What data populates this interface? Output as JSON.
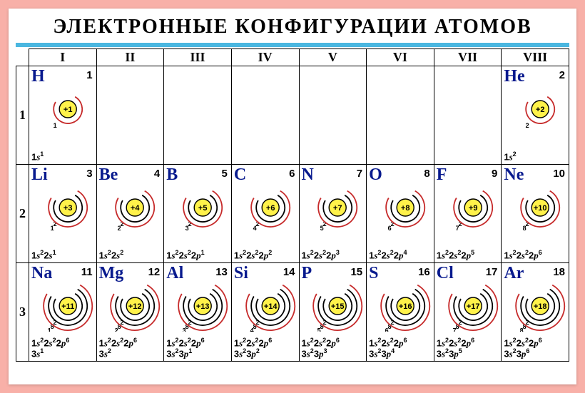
{
  "title": "ЭЛЕКТРОННЫЕ  КОНФИГУРАЦИИ  АТОМОВ",
  "accent_color": "#4bb7e0",
  "nucleus_fill": "#fff24a",
  "arc_color_red": "#c62a2a",
  "arc_color_black": "#000000",
  "group_headers": [
    "I",
    "II",
    "III",
    "IV",
    "V",
    "VI",
    "VII",
    "VIII"
  ],
  "period_labels": [
    "1",
    "2",
    "3"
  ],
  "elements": {
    "H": {
      "z": 1,
      "period": 1,
      "group": 1,
      "shells": [
        1
      ],
      "config": "1s^1"
    },
    "He": {
      "z": 2,
      "period": 1,
      "group": 8,
      "shells": [
        2
      ],
      "config": "1s^2"
    },
    "Li": {
      "z": 3,
      "period": 2,
      "group": 1,
      "shells": [
        2,
        1
      ],
      "config": "1s^2 2s^1"
    },
    "Be": {
      "z": 4,
      "period": 2,
      "group": 2,
      "shells": [
        2,
        2
      ],
      "config": "1s^2 2s^2"
    },
    "B": {
      "z": 5,
      "period": 2,
      "group": 3,
      "shells": [
        2,
        3
      ],
      "config": "1s^2 2s^2 2p^1"
    },
    "C": {
      "z": 6,
      "period": 2,
      "group": 4,
      "shells": [
        2,
        4
      ],
      "config": "1s^2 2s^2 2p^2"
    },
    "N": {
      "z": 7,
      "period": 2,
      "group": 5,
      "shells": [
        2,
        5
      ],
      "config": "1s^2 2s^2 2p^3"
    },
    "O": {
      "z": 8,
      "period": 2,
      "group": 6,
      "shells": [
        2,
        6
      ],
      "config": "1s^2 2s^2 2p^4"
    },
    "F": {
      "z": 9,
      "period": 2,
      "group": 7,
      "shells": [
        2,
        7
      ],
      "config": "1s^2 2s^2 2p^5"
    },
    "Ne": {
      "z": 10,
      "period": 2,
      "group": 8,
      "shells": [
        2,
        8
      ],
      "config": "1s^2 2s^2 2p^6"
    },
    "Na": {
      "z": 11,
      "period": 3,
      "group": 1,
      "shells": [
        2,
        8,
        1
      ],
      "config": "1s^2 2s^2 2p^6 3s^1"
    },
    "Mg": {
      "z": 12,
      "period": 3,
      "group": 2,
      "shells": [
        2,
        8,
        2
      ],
      "config": "1s^2 2s^2 2p^6 3s^2"
    },
    "Al": {
      "z": 13,
      "period": 3,
      "group": 3,
      "shells": [
        2,
        8,
        3
      ],
      "config": "1s^2 2s^2 2p^6 3s^2 3p^1"
    },
    "Si": {
      "z": 14,
      "period": 3,
      "group": 4,
      "shells": [
        2,
        8,
        4
      ],
      "config": "1s^2 2s^2 2p^6 3s^2 3p^2"
    },
    "P": {
      "z": 15,
      "period": 3,
      "group": 5,
      "shells": [
        2,
        8,
        5
      ],
      "config": "1s^2 2s^2 2p^6 3s^2 3p^3"
    },
    "S": {
      "z": 16,
      "period": 3,
      "group": 6,
      "shells": [
        2,
        8,
        6
      ],
      "config": "1s^2 2s^2 2p^6 3s^2 3p^4"
    },
    "Cl": {
      "z": 17,
      "period": 3,
      "group": 7,
      "shells": [
        2,
        8,
        7
      ],
      "config": "1s^2 2s^2 2p^6 3s^2 3p^5"
    },
    "Ar": {
      "z": 18,
      "period": 3,
      "group": 8,
      "shells": [
        2,
        8,
        8
      ],
      "config": "1s^2 2s^2 2p^6 3s^2 3p^6"
    }
  },
  "shell_arc_radii": [
    20,
    27,
    34
  ],
  "nucleus_radius": 12,
  "svg_size": {
    "w": 90,
    "h": 72
  },
  "shell_label_fontsize": 9,
  "nucleus_fontsize": 11
}
